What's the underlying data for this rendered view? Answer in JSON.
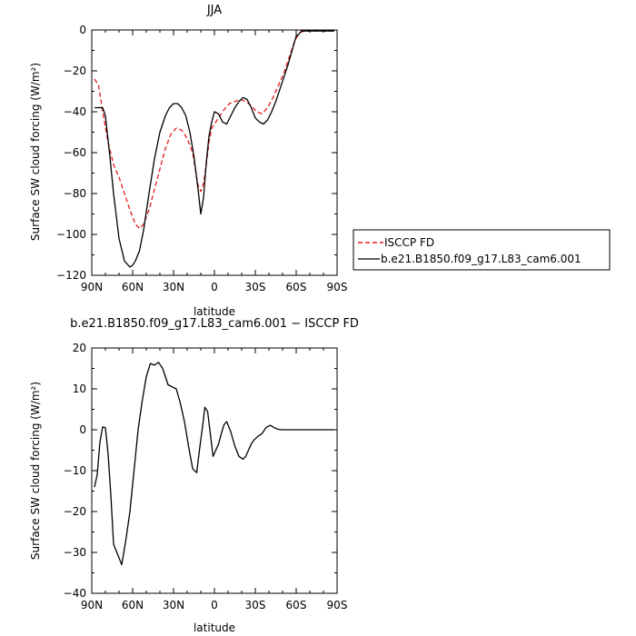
{
  "chart_data": [
    {
      "type": "line",
      "title": "JJA",
      "xlabel": "latitude",
      "ylabel": "Surface SW cloud forcing (W/m²)",
      "xlim": [
        90,
        -90
      ],
      "ylim": [
        -120,
        0
      ],
      "x_ticks": [
        90,
        60,
        30,
        0,
        -30,
        -60,
        -90
      ],
      "x_tick_labels": [
        "90N",
        "60N",
        "30N",
        "0",
        "30S",
        "60S",
        "90S"
      ],
      "y_ticks": [
        0,
        -20,
        -40,
        -60,
        -80,
        -100,
        -120
      ],
      "y_tick_labels": [
        "0",
        "−20",
        "−40",
        "−60",
        "−80",
        "−100",
        "−120"
      ],
      "legend_position": "right",
      "series": [
        {
          "name": "ISCCP FD",
          "color": "#e31a1c",
          "dash": "dashed",
          "x": [
            88,
            85,
            82,
            78,
            74,
            70,
            66,
            62,
            58,
            55,
            52,
            48,
            44,
            40,
            36,
            32,
            28,
            24,
            20,
            16,
            14,
            12,
            10,
            8,
            6,
            4,
            2,
            0,
            -3,
            -7,
            -11,
            -15,
            -19,
            -23,
            -27,
            -31,
            -35,
            -39,
            -43,
            -47,
            -51,
            -55,
            -59,
            -63,
            -67,
            -71,
            -75,
            -80,
            -85,
            -88
          ],
          "y": [
            -24,
            -27,
            -40,
            -55,
            -66,
            -72,
            -80,
            -88,
            -95,
            -97,
            -95,
            -88,
            -78,
            -68,
            -58,
            -51,
            -48,
            -49,
            -53,
            -60,
            -68,
            -76,
            -79,
            -75,
            -66,
            -55,
            -48,
            -46,
            -43,
            -39,
            -36,
            -35,
            -34,
            -35,
            -37,
            -40,
            -41,
            -38,
            -33,
            -27,
            -21,
            -13,
            -5,
            -1,
            -0.5,
            -0.5,
            -0.5,
            -0.5,
            -0.5,
            -0.5
          ]
        },
        {
          "name": "b.e21.B1850.f09_g17.L83_cam6.001",
          "color": "#000000",
          "dash": "solid",
          "x": [
            88,
            85,
            82,
            80,
            77,
            74,
            70,
            66,
            62,
            60,
            58,
            55,
            52,
            48,
            44,
            40,
            36,
            33,
            30,
            27,
            24,
            21,
            18,
            15,
            12,
            10,
            8,
            6,
            4,
            2,
            0,
            -3,
            -6,
            -9,
            -12,
            -15,
            -18,
            -21,
            -24,
            -27,
            -30,
            -33,
            -36,
            -39,
            -42,
            -45,
            -48,
            -51,
            -54,
            -57,
            -60,
            -62,
            -64,
            -66,
            -68,
            -71,
            -75,
            -80,
            -85,
            -88
          ],
          "y": [
            -38,
            -38,
            -38,
            -42,
            -60,
            -80,
            -102,
            -113,
            -116,
            -115,
            -113,
            -108,
            -98,
            -80,
            -63,
            -50,
            -42,
            -38,
            -36,
            -36,
            -38,
            -42,
            -50,
            -62,
            -78,
            -90,
            -82,
            -65,
            -52,
            -45,
            -40,
            -41,
            -45,
            -46,
            -42,
            -38,
            -35,
            -33,
            -34,
            -38,
            -43,
            -45,
            -46,
            -44,
            -40,
            -35,
            -29,
            -23,
            -17,
            -10,
            -3,
            -2,
            -0.5,
            -0.5,
            -0.5,
            -0.5,
            -0.5,
            -0.5,
            -0.5,
            -0.5
          ]
        }
      ]
    },
    {
      "type": "line",
      "title": "b.e21.B1850.f09_g17.L83_cam6.001 − ISCCP FD",
      "xlabel": "latitude",
      "ylabel": "Surface SW cloud forcing (W/m²)",
      "xlim": [
        90,
        -90
      ],
      "ylim": [
        -40,
        20
      ],
      "x_ticks": [
        90,
        60,
        30,
        0,
        -30,
        -60,
        -90
      ],
      "x_tick_labels": [
        "90N",
        "60N",
        "30N",
        "0",
        "30S",
        "60S",
        "90S"
      ],
      "y_ticks": [
        20,
        10,
        0,
        -10,
        -20,
        -30,
        -40
      ],
      "y_tick_labels": [
        "20",
        "10",
        "0",
        "−10",
        "−20",
        "−30",
        "−40"
      ],
      "series": [
        {
          "name": "",
          "color": "#000000",
          "dash": "solid",
          "x": [
            88,
            86,
            84,
            82,
            80,
            78,
            76,
            74,
            71,
            68,
            65,
            62,
            59,
            56,
            53,
            50,
            47,
            44,
            41,
            38,
            36,
            34,
            31,
            28,
            25,
            22,
            19,
            16,
            13,
            11,
            9,
            7,
            5,
            3,
            1,
            -1,
            -3,
            -5,
            -7,
            -9,
            -12,
            -15,
            -18,
            -21,
            -23,
            -25,
            -27,
            -29,
            -32,
            -35,
            -38,
            -41,
            -44,
            -47,
            -50,
            -53,
            -56,
            -59,
            -62,
            -65,
            -67,
            -70,
            -74,
            -78,
            -82,
            -86,
            -88
          ],
          "y": [
            -14,
            -11,
            -3,
            0.7,
            0.5,
            -6,
            -16,
            -28,
            -30.5,
            -33,
            -27,
            -20,
            -10,
            0,
            7,
            13,
            16.2,
            15.8,
            16.5,
            15,
            13,
            11,
            10.5,
            10,
            6.5,
            2,
            -4,
            -9.5,
            -10.5,
            -5,
            0,
            5.5,
            4.5,
            -1,
            -6.5,
            -5,
            -3.5,
            -1,
            1.2,
            2,
            -0.5,
            -4,
            -6.5,
            -7.2,
            -6.5,
            -5,
            -3.5,
            -2.5,
            -1.6,
            -0.9,
            0.6,
            1.1,
            0.5,
            0.1,
            0,
            0,
            0,
            0,
            0,
            0,
            0,
            0,
            0,
            0,
            0,
            0,
            0
          ]
        }
      ]
    }
  ]
}
